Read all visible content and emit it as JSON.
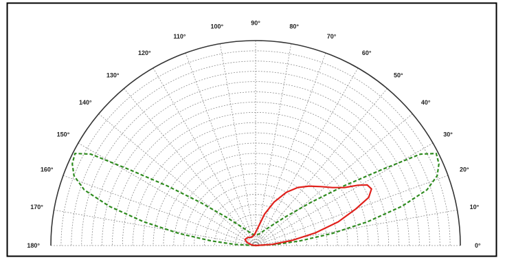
{
  "chart_data": {
    "type": "polar",
    "angle_unit": "degrees",
    "angle_range": [
      0,
      180
    ],
    "angle_tick_labels": [
      "0°",
      "10°",
      "20°",
      "30°",
      "40°",
      "50°",
      "60°",
      "70°",
      "80°",
      "90°",
      "100°",
      "110°",
      "120°",
      "130°",
      "140°",
      "150°",
      "160°",
      "170°",
      "180°"
    ],
    "radial_range": [
      0,
      1
    ],
    "grid": true,
    "series": [
      {
        "color": "#2e8b1e",
        "line_style": "dashed",
        "points": [
          {
            "angle": 0,
            "r": 0.0
          },
          {
            "angle": 3,
            "r": 0.1
          },
          {
            "angle": 6,
            "r": 0.22
          },
          {
            "angle": 9,
            "r": 0.38
          },
          {
            "angle": 12,
            "r": 0.56
          },
          {
            "angle": 15,
            "r": 0.74
          },
          {
            "angle": 18,
            "r": 0.88
          },
          {
            "angle": 21,
            "r": 0.95
          },
          {
            "angle": 24,
            "r": 0.98
          },
          {
            "angle": 27,
            "r": 0.99
          },
          {
            "angle": 29,
            "r": 0.92
          },
          {
            "angle": 31,
            "r": 0.72
          },
          {
            "angle": 34,
            "r": 0.52
          },
          {
            "angle": 38,
            "r": 0.34
          },
          {
            "angle": 44,
            "r": 0.2
          },
          {
            "angle": 52,
            "r": 0.12
          },
          {
            "angle": 62,
            "r": 0.08
          },
          {
            "angle": 72,
            "r": 0.06
          },
          {
            "angle": 80,
            "r": 0.055
          },
          {
            "angle": 90,
            "r": 0.05
          },
          {
            "angle": 100,
            "r": 0.055
          },
          {
            "angle": 108,
            "r": 0.06
          },
          {
            "angle": 118,
            "r": 0.08
          },
          {
            "angle": 128,
            "r": 0.12
          },
          {
            "angle": 136,
            "r": 0.2
          },
          {
            "angle": 142,
            "r": 0.34
          },
          {
            "angle": 146,
            "r": 0.52
          },
          {
            "angle": 149,
            "r": 0.72
          },
          {
            "angle": 151,
            "r": 0.92
          },
          {
            "angle": 153,
            "r": 0.99
          },
          {
            "angle": 156,
            "r": 0.98
          },
          {
            "angle": 159,
            "r": 0.95
          },
          {
            "angle": 162,
            "r": 0.88
          },
          {
            "angle": 165,
            "r": 0.74
          },
          {
            "angle": 168,
            "r": 0.56
          },
          {
            "angle": 171,
            "r": 0.38
          },
          {
            "angle": 174,
            "r": 0.22
          },
          {
            "angle": 177,
            "r": 0.1
          },
          {
            "angle": 180,
            "r": 0.0
          }
        ]
      },
      {
        "color": "#e0201b",
        "line_style": "solid",
        "points": [
          {
            "angle": 0,
            "r": 0.0
          },
          {
            "angle": 4,
            "r": 0.08
          },
          {
            "angle": 8,
            "r": 0.18
          },
          {
            "angle": 12,
            "r": 0.3
          },
          {
            "angle": 16,
            "r": 0.42
          },
          {
            "angle": 20,
            "r": 0.52
          },
          {
            "angle": 23,
            "r": 0.6
          },
          {
            "angle": 26,
            "r": 0.63
          },
          {
            "angle": 28.5,
            "r": 0.62
          },
          {
            "angle": 30.5,
            "r": 0.58
          },
          {
            "angle": 33,
            "r": 0.52
          },
          {
            "angle": 37,
            "r": 0.47
          },
          {
            "angle": 42,
            "r": 0.43
          },
          {
            "angle": 48,
            "r": 0.39
          },
          {
            "angle": 54,
            "r": 0.35
          },
          {
            "angle": 60,
            "r": 0.3
          },
          {
            "angle": 67,
            "r": 0.23
          },
          {
            "angle": 74,
            "r": 0.16
          },
          {
            "angle": 82,
            "r": 0.09
          },
          {
            "angle": 95,
            "r": 0.055
          },
          {
            "angle": 115,
            "r": 0.045
          },
          {
            "angle": 135,
            "r": 0.055
          },
          {
            "angle": 150,
            "r": 0.06
          },
          {
            "angle": 160,
            "r": 0.045
          },
          {
            "angle": 170,
            "r": 0.02
          },
          {
            "angle": 180,
            "r": 0.0
          }
        ]
      }
    ]
  }
}
